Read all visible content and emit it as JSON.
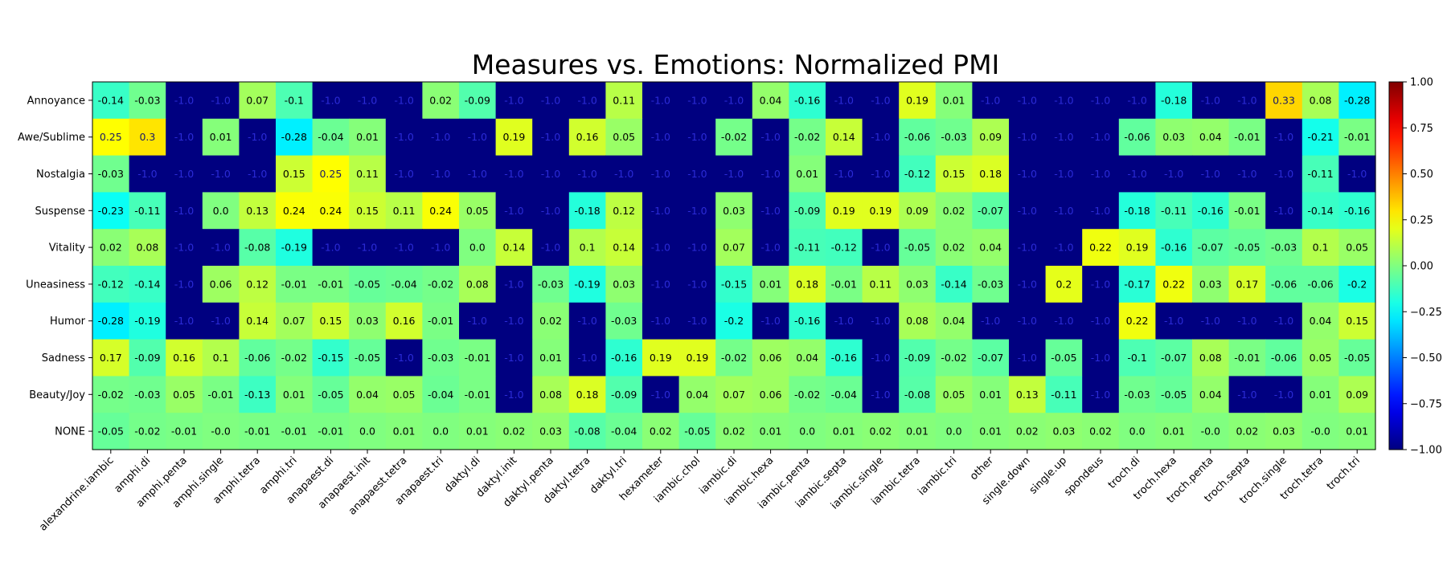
{
  "chart_data": {
    "type": "heatmap",
    "title": "Measures vs. Emotions: Normalized PMI",
    "xlabel": "",
    "ylabel": "",
    "colormap": "jet",
    "clim": [
      -1.0,
      1.0
    ],
    "colorbar_ticks": [
      "1.00",
      "0.75",
      "0.50",
      "0.25",
      "0.00",
      "−0.25",
      "−0.50",
      "−0.75",
      "−1.00"
    ],
    "colorbar_tick_values": [
      1.0,
      0.75,
      0.5,
      0.25,
      0.0,
      -0.25,
      -0.5,
      -0.75,
      -1.0
    ],
    "rows": [
      "Annoyance",
      "Awe/Sublime",
      "Nostalgia",
      "Suspense",
      "Vitality",
      "Uneasiness",
      "Humor",
      "Sadness",
      "Beauty/Joy",
      "NONE"
    ],
    "columns": [
      "alexandrine.iambic",
      "amphi.di",
      "amphi.penta",
      "amphi.single",
      "amphi.tetra",
      "amphi.tri",
      "anapaest.di",
      "anapaest.init",
      "anapaest.tetra",
      "anapaest.tri",
      "daktyl.di",
      "daktyl.init",
      "daktyl.penta",
      "daktyl.tetra",
      "daktyl.tri",
      "hexameter",
      "iambic.chol",
      "iambic.di",
      "iambic.hexa",
      "iambic.penta",
      "iambic.septa",
      "iambic.single",
      "iambic.tetra",
      "iambic.tri",
      "other",
      "single.down",
      "single.up",
      "spondeus",
      "troch.di",
      "troch.hexa",
      "troch.penta",
      "troch.septa",
      "troch.single",
      "troch.tetra",
      "troch.tri"
    ],
    "values": [
      [
        -0.14,
        -0.03,
        -1.0,
        -1.0,
        0.07,
        -0.1,
        -1.0,
        -1.0,
        -1.0,
        0.02,
        -0.09,
        -1.0,
        -1.0,
        -1.0,
        0.11,
        -1.0,
        -1.0,
        -1.0,
        0.04,
        -0.16,
        -1.0,
        -1.0,
        0.19,
        0.01,
        -1.0,
        -1.0,
        -1.0,
        -1.0,
        -1.0,
        -0.18,
        -1.0,
        -1.0,
        0.33,
        0.08,
        -0.28
      ],
      [
        0.25,
        0.3,
        -1.0,
        0.01,
        -1.0,
        -0.28,
        -0.04,
        0.01,
        -1.0,
        -1.0,
        -1.0,
        0.19,
        -1.0,
        0.16,
        0.05,
        -1.0,
        -1.0,
        -0.02,
        -1.0,
        -0.02,
        0.14,
        -1.0,
        -0.06,
        -0.03,
        0.09,
        -1.0,
        -1.0,
        -1.0,
        -0.06,
        0.03,
        0.04,
        -0.01,
        -1.0,
        -0.21,
        -0.01
      ],
      [
        -0.03,
        -1.0,
        -1.0,
        -1.0,
        -1.0,
        0.15,
        0.25,
        0.11,
        -1.0,
        -1.0,
        -1.0,
        -1.0,
        -1.0,
        -1.0,
        -1.0,
        -1.0,
        -1.0,
        -1.0,
        -1.0,
        0.01,
        -1.0,
        -1.0,
        -0.12,
        0.15,
        0.18,
        -1.0,
        -1.0,
        -1.0,
        -1.0,
        -1.0,
        -1.0,
        -1.0,
        -1.0,
        -0.11,
        -1.0
      ],
      [
        -0.23,
        -0.11,
        -1.0,
        0.0,
        0.13,
        0.24,
        0.24,
        0.15,
        0.11,
        0.24,
        0.05,
        -1.0,
        -1.0,
        -0.18,
        0.12,
        -1.0,
        -1.0,
        0.03,
        -1.0,
        -0.09,
        0.19,
        0.19,
        0.09,
        0.02,
        -0.07,
        -1.0,
        -1.0,
        -1.0,
        -0.18,
        -0.11,
        -0.16,
        -0.01,
        -1.0,
        -0.14,
        -0.16
      ],
      [
        0.02,
        0.08,
        -1.0,
        -1.0,
        -0.08,
        -0.19,
        -1.0,
        -1.0,
        -1.0,
        -1.0,
        0.0,
        0.14,
        -1.0,
        0.1,
        0.14,
        -1.0,
        -1.0,
        0.07,
        -1.0,
        -0.11,
        -0.12,
        -1.0,
        -0.05,
        0.02,
        0.04,
        -1.0,
        -1.0,
        0.22,
        0.19,
        -0.16,
        -0.07,
        -0.05,
        -0.03,
        0.1,
        0.05
      ],
      [
        -0.12,
        -0.14,
        -1.0,
        0.06,
        0.12,
        -0.01,
        -0.01,
        -0.05,
        -0.04,
        -0.02,
        0.08,
        -1.0,
        -0.03,
        -0.19,
        0.03,
        -1.0,
        -1.0,
        -0.15,
        0.01,
        0.18,
        -0.01,
        0.11,
        0.03,
        -0.14,
        -0.03,
        -1.0,
        0.2,
        -1.0,
        -0.17,
        0.22,
        0.03,
        0.17,
        -0.06,
        -0.06,
        -0.2
      ],
      [
        -0.28,
        -0.19,
        -1.0,
        -1.0,
        0.14,
        0.07,
        0.15,
        0.03,
        0.16,
        -0.01,
        -1.0,
        -1.0,
        0.02,
        -1.0,
        -0.03,
        -1.0,
        -1.0,
        -0.2,
        -1.0,
        -0.16,
        -1.0,
        -1.0,
        0.08,
        0.04,
        -1.0,
        -1.0,
        -1.0,
        -1.0,
        0.22,
        -1.0,
        -1.0,
        -1.0,
        -1.0,
        0.04,
        0.15
      ],
      [
        0.17,
        -0.09,
        0.16,
        0.1,
        -0.06,
        -0.02,
        -0.15,
        -0.05,
        -1.0,
        -0.03,
        -0.01,
        -1.0,
        0.01,
        -1.0,
        -0.16,
        0.19,
        0.19,
        -0.02,
        0.06,
        0.04,
        -0.16,
        -1.0,
        -0.09,
        -0.02,
        -0.07,
        -1.0,
        -0.05,
        -1.0,
        -0.1,
        -0.07,
        0.08,
        -0.01,
        -0.06,
        0.05,
        -0.05
      ],
      [
        -0.02,
        -0.03,
        0.05,
        -0.01,
        -0.13,
        0.01,
        -0.05,
        0.04,
        0.05,
        -0.04,
        -0.01,
        -1.0,
        0.08,
        0.18,
        -0.09,
        -1.0,
        0.04,
        0.07,
        0.06,
        -0.02,
        -0.04,
        -1.0,
        -0.08,
        0.05,
        0.01,
        0.13,
        -0.11,
        -1.0,
        -0.03,
        -0.05,
        0.04,
        -1.0,
        -1.0,
        0.01,
        0.09
      ],
      [
        -0.05,
        -0.02,
        -0.01,
        -0.0,
        -0.01,
        -0.01,
        -0.01,
        0.0,
        0.01,
        0.0,
        0.01,
        0.02,
        0.03,
        -0.08,
        -0.04,
        0.02,
        -0.05,
        0.02,
        0.01,
        0.0,
        0.01,
        0.02,
        0.01,
        0.0,
        0.01,
        0.02,
        0.03,
        0.02,
        0.0,
        0.01,
        -0.0,
        0.02,
        0.03,
        -0.0,
        0.01
      ]
    ],
    "labels": [
      [
        "-0.14",
        "-0.03",
        "-1.0",
        "-1.0",
        "0.07",
        "-0.1",
        "-1.0",
        "-1.0",
        "-1.0",
        "0.02",
        "-0.09",
        "-1.0",
        "-1.0",
        "-1.0",
        "0.11",
        "-1.0",
        "-1.0",
        "-1.0",
        "0.04",
        "-0.16",
        "-1.0",
        "-1.0",
        "0.19",
        "0.01",
        "-1.0",
        "-1.0",
        "-1.0",
        "-1.0",
        "-1.0",
        "-0.18",
        "-1.0",
        "-1.0",
        "0.33",
        "0.08",
        "-0.28"
      ],
      [
        "0.25",
        "0.3",
        "-1.0",
        "0.01",
        "-1.0",
        "-0.28",
        "-0.04",
        "0.01",
        "-1.0",
        "-1.0",
        "-1.0",
        "0.19",
        "-1.0",
        "0.16",
        "0.05",
        "-1.0",
        "-1.0",
        "-0.02",
        "-1.0",
        "-0.02",
        "0.14",
        "-1.0",
        "-0.06",
        "-0.03",
        "0.09",
        "-1.0",
        "-1.0",
        "-1.0",
        "-0.06",
        "0.03",
        "0.04",
        "-0.01",
        "-1.0",
        "-0.21",
        "-0.01"
      ],
      [
        "-0.03",
        "-1.0",
        "-1.0",
        "-1.0",
        "-1.0",
        "0.15",
        "0.25",
        "0.11",
        "-1.0",
        "-1.0",
        "-1.0",
        "-1.0",
        "-1.0",
        "-1.0",
        "-1.0",
        "-1.0",
        "-1.0",
        "-1.0",
        "-1.0",
        "0.01",
        "-1.0",
        "-1.0",
        "-0.12",
        "0.15",
        "0.18",
        "-1.0",
        "-1.0",
        "-1.0",
        "-1.0",
        "-1.0",
        "-1.0",
        "-1.0",
        "-1.0",
        "-0.11",
        "-1.0"
      ],
      [
        "-0.23",
        "-0.11",
        "-1.0",
        "0.0",
        "0.13",
        "0.24",
        "0.24",
        "0.15",
        "0.11",
        "0.24",
        "0.05",
        "-1.0",
        "-1.0",
        "-0.18",
        "0.12",
        "-1.0",
        "-1.0",
        "0.03",
        "-1.0",
        "-0.09",
        "0.19",
        "0.19",
        "0.09",
        "0.02",
        "-0.07",
        "-1.0",
        "-1.0",
        "-1.0",
        "-0.18",
        "-0.11",
        "-0.16",
        "-0.01",
        "-1.0",
        "-0.14",
        "-0.16"
      ],
      [
        "0.02",
        "0.08",
        "-1.0",
        "-1.0",
        "-0.08",
        "-0.19",
        "-1.0",
        "-1.0",
        "-1.0",
        "-1.0",
        "0.0",
        "0.14",
        "-1.0",
        "0.1",
        "0.14",
        "-1.0",
        "-1.0",
        "0.07",
        "-1.0",
        "-0.11",
        "-0.12",
        "-1.0",
        "-0.05",
        "0.02",
        "0.04",
        "-1.0",
        "-1.0",
        "0.22",
        "0.19",
        "-0.16",
        "-0.07",
        "-0.05",
        "-0.03",
        "0.1",
        "0.05"
      ],
      [
        "-0.12",
        "-0.14",
        "-1.0",
        "0.06",
        "0.12",
        "-0.01",
        "-0.01",
        "-0.05",
        "-0.04",
        "-0.02",
        "0.08",
        "-1.0",
        "-0.03",
        "-0.19",
        "0.03",
        "-1.0",
        "-1.0",
        "-0.15",
        "0.01",
        "0.18",
        "-0.01",
        "0.11",
        "0.03",
        "-0.14",
        "-0.03",
        "-1.0",
        "0.2",
        "-1.0",
        "-0.17",
        "0.22",
        "0.03",
        "0.17",
        "-0.06",
        "-0.06",
        "-0.2"
      ],
      [
        "-0.28",
        "-0.19",
        "-1.0",
        "-1.0",
        "0.14",
        "0.07",
        "0.15",
        "0.03",
        "0.16",
        "-0.01",
        "-1.0",
        "-1.0",
        "0.02",
        "-1.0",
        "-0.03",
        "-1.0",
        "-1.0",
        "-0.2",
        "-1.0",
        "-0.16",
        "-1.0",
        "-1.0",
        "0.08",
        "0.04",
        "-1.0",
        "-1.0",
        "-1.0",
        "-1.0",
        "0.22",
        "-1.0",
        "-1.0",
        "-1.0",
        "-1.0",
        "0.04",
        "0.15"
      ],
      [
        "0.17",
        "-0.09",
        "0.16",
        "0.1",
        "-0.06",
        "-0.02",
        "-0.15",
        "-0.05",
        "-1.0",
        "-0.03",
        "-0.01",
        "-1.0",
        "0.01",
        "-1.0",
        "-0.16",
        "0.19",
        "0.19",
        "-0.02",
        "0.06",
        "0.04",
        "-0.16",
        "-1.0",
        "-0.09",
        "-0.02",
        "-0.07",
        "-1.0",
        "-0.05",
        "-1.0",
        "-0.1",
        "-0.07",
        "0.08",
        "-0.01",
        "-0.06",
        "0.05",
        "-0.05"
      ],
      [
        "-0.02",
        "-0.03",
        "0.05",
        "-0.01",
        "-0.13",
        "0.01",
        "-0.05",
        "0.04",
        "0.05",
        "-0.04",
        "-0.01",
        "-1.0",
        "0.08",
        "0.18",
        "-0.09",
        "-1.0",
        "0.04",
        "0.07",
        "0.06",
        "-0.02",
        "-0.04",
        "-1.0",
        "-0.08",
        "0.05",
        "0.01",
        "0.13",
        "-0.11",
        "-1.0",
        "-0.03",
        "-0.05",
        "0.04",
        "-1.0",
        "-1.0",
        "0.01",
        "0.09"
      ],
      [
        "-0.05",
        "-0.02",
        "-0.01",
        "-0.0",
        "-0.01",
        "-0.01",
        "-0.01",
        "0.0",
        "0.01",
        "0.0",
        "0.01",
        "0.02",
        "0.03",
        "-0.08",
        "-0.04",
        "0.02",
        "-0.05",
        "0.02",
        "0.01",
        "0.0",
        "0.01",
        "0.02",
        "0.01",
        "0.0",
        "0.01",
        "0.02",
        "0.03",
        "0.02",
        "0.0",
        "0.01",
        "-0.0",
        "0.02",
        "0.03",
        "-0.0",
        "0.01"
      ]
    ],
    "grid": false,
    "legend": "colorbar-right"
  }
}
